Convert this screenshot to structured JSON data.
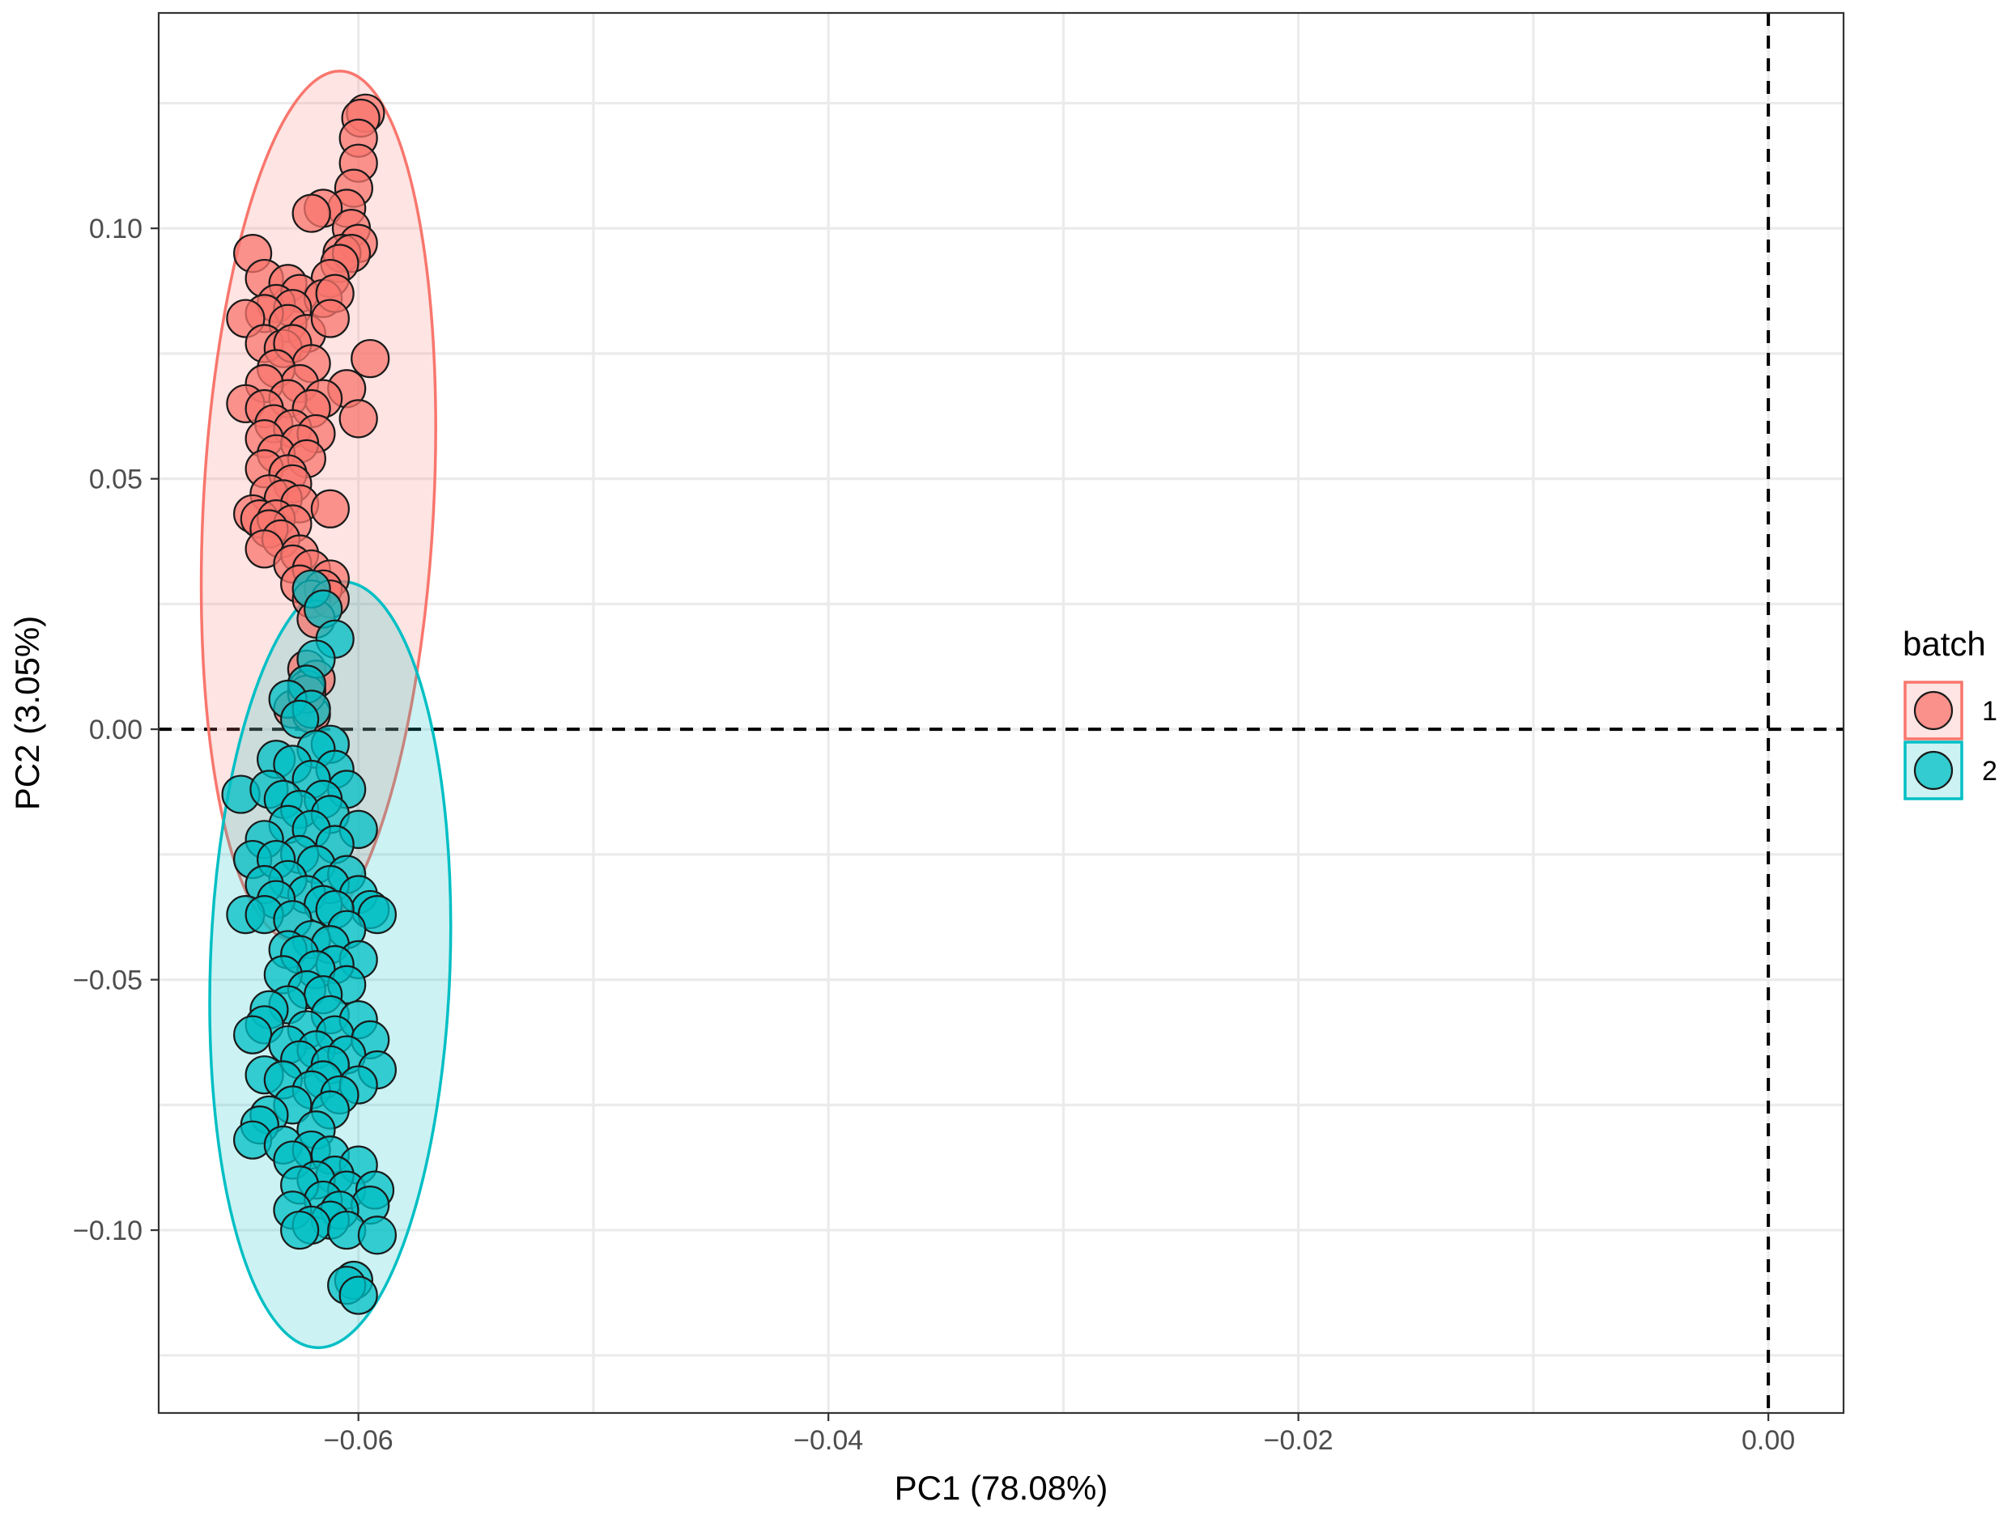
{
  "chart_data": {
    "type": "scatter",
    "title": "",
    "xlabel": "PC1 (78.08%)",
    "ylabel": "PC2 (3.05%)",
    "xlim": [
      -0.0685,
      0.0032
    ],
    "ylim": [
      -0.1365,
      0.143
    ],
    "x_ticks": [
      {
        "value": -0.06,
        "label": "−0.06"
      },
      {
        "value": -0.04,
        "label": "−0.04"
      },
      {
        "value": -0.02,
        "label": "−0.02"
      },
      {
        "value": 0.0,
        "label": "0.00"
      }
    ],
    "y_ticks": [
      {
        "value": 0.1,
        "label": "0.10"
      },
      {
        "value": 0.05,
        "label": "0.05"
      },
      {
        "value": 0.0,
        "label": "0.00"
      },
      {
        "value": -0.05,
        "label": "−0.05"
      },
      {
        "value": -0.1,
        "label": "−0.10"
      }
    ],
    "grid": true,
    "reference_lines": {
      "x": 0,
      "y": 0,
      "style": "dashed"
    },
    "legend": {
      "title": "batch",
      "placement": "right"
    },
    "series": [
      {
        "name": "1",
        "color": "#F8766D",
        "ellipse": {
          "cx": -0.0617,
          "cy": 0.0445,
          "rx": 0.0049,
          "ry": 0.087,
          "angle_deg": 3
        },
        "points": [
          [
            -0.0597,
            0.123
          ],
          [
            -0.0599,
            0.122
          ],
          [
            -0.06,
            0.118
          ],
          [
            -0.06,
            0.113
          ],
          [
            -0.0602,
            0.108
          ],
          [
            -0.0605,
            0.104
          ],
          [
            -0.0615,
            0.104
          ],
          [
            -0.062,
            0.103
          ],
          [
            -0.0603,
            0.1
          ],
          [
            -0.06,
            0.097
          ],
          [
            -0.0607,
            0.095
          ],
          [
            -0.0603,
            0.095
          ],
          [
            -0.0608,
            0.093
          ],
          [
            -0.0612,
            0.09
          ],
          [
            -0.0645,
            0.095
          ],
          [
            -0.064,
            0.09
          ],
          [
            -0.063,
            0.089
          ],
          [
            -0.0625,
            0.087
          ],
          [
            -0.0615,
            0.086
          ],
          [
            -0.061,
            0.087
          ],
          [
            -0.0635,
            0.085
          ],
          [
            -0.0628,
            0.084
          ],
          [
            -0.064,
            0.083
          ],
          [
            -0.0648,
            0.082
          ],
          [
            -0.063,
            0.081
          ],
          [
            -0.0622,
            0.079
          ],
          [
            -0.0612,
            0.082
          ],
          [
            -0.064,
            0.077
          ],
          [
            -0.0632,
            0.076
          ],
          [
            -0.0628,
            0.077
          ],
          [
            -0.0595,
            0.074
          ],
          [
            -0.062,
            0.073
          ],
          [
            -0.0635,
            0.072
          ],
          [
            -0.0625,
            0.069
          ],
          [
            -0.064,
            0.069
          ],
          [
            -0.0605,
            0.068
          ],
          [
            -0.0615,
            0.066
          ],
          [
            -0.063,
            0.066
          ],
          [
            -0.0648,
            0.065
          ],
          [
            -0.064,
            0.064
          ],
          [
            -0.062,
            0.064
          ],
          [
            -0.06,
            0.062
          ],
          [
            -0.0636,
            0.061
          ],
          [
            -0.0628,
            0.06
          ],
          [
            -0.0618,
            0.059
          ],
          [
            -0.064,
            0.058
          ],
          [
            -0.0625,
            0.057
          ],
          [
            -0.0635,
            0.055
          ],
          [
            -0.0622,
            0.054
          ],
          [
            -0.064,
            0.052
          ],
          [
            -0.063,
            0.051
          ],
          [
            -0.0628,
            0.049
          ],
          [
            -0.0638,
            0.047
          ],
          [
            -0.0632,
            0.046
          ],
          [
            -0.0625,
            0.045
          ],
          [
            -0.0612,
            0.044
          ],
          [
            -0.0645,
            0.043
          ],
          [
            -0.0642,
            0.042
          ],
          [
            -0.0635,
            0.042
          ],
          [
            -0.0628,
            0.041
          ],
          [
            -0.0638,
            0.04
          ],
          [
            -0.0633,
            0.038
          ],
          [
            -0.064,
            0.036
          ],
          [
            -0.0625,
            0.035
          ],
          [
            -0.0628,
            0.033
          ],
          [
            -0.062,
            0.032
          ],
          [
            -0.0612,
            0.03
          ],
          [
            -0.0625,
            0.029
          ],
          [
            -0.0615,
            0.028
          ],
          [
            -0.062,
            0.026
          ],
          [
            -0.0612,
            0.026
          ],
          [
            -0.0618,
            0.022
          ],
          [
            -0.0622,
            0.012
          ],
          [
            -0.0618,
            0.01
          ],
          [
            -0.0622,
            0.008
          ],
          [
            -0.0628,
            0.004
          ],
          [
            -0.062,
            0.003
          ],
          [
            -0.0622,
            0.007
          ]
        ]
      },
      {
        "name": "2",
        "color": "#00BFC4",
        "ellipse": {
          "cx": -0.0612,
          "cy": -0.047,
          "rx": 0.0051,
          "ry": 0.0765,
          "angle_deg": 2
        },
        "points": [
          [
            -0.062,
            0.028
          ],
          [
            -0.0615,
            0.024
          ],
          [
            -0.061,
            0.018
          ],
          [
            -0.0618,
            0.014
          ],
          [
            -0.0622,
            0.009
          ],
          [
            -0.063,
            0.006
          ],
          [
            -0.062,
            0.004
          ],
          [
            -0.0625,
            0.002
          ],
          [
            -0.0612,
            -0.003
          ],
          [
            -0.0618,
            -0.004
          ],
          [
            -0.0635,
            -0.006
          ],
          [
            -0.0628,
            -0.007
          ],
          [
            -0.061,
            -0.008
          ],
          [
            -0.062,
            -0.01
          ],
          [
            -0.0605,
            -0.012
          ],
          [
            -0.065,
            -0.013
          ],
          [
            -0.0638,
            -0.012
          ],
          [
            -0.0632,
            -0.014
          ],
          [
            -0.0615,
            -0.014
          ],
          [
            -0.0625,
            -0.016
          ],
          [
            -0.0612,
            -0.017
          ],
          [
            -0.063,
            -0.019
          ],
          [
            -0.062,
            -0.02
          ],
          [
            -0.06,
            -0.02
          ],
          [
            -0.064,
            -0.022
          ],
          [
            -0.061,
            -0.023
          ],
          [
            -0.0625,
            -0.025
          ],
          [
            -0.0645,
            -0.026
          ],
          [
            -0.0635,
            -0.026
          ],
          [
            -0.0618,
            -0.027
          ],
          [
            -0.0605,
            -0.029
          ],
          [
            -0.063,
            -0.03
          ],
          [
            -0.064,
            -0.031
          ],
          [
            -0.0612,
            -0.031
          ],
          [
            -0.0622,
            -0.033
          ],
          [
            -0.06,
            -0.033
          ],
          [
            -0.0635,
            -0.034
          ],
          [
            -0.0615,
            -0.035
          ],
          [
            -0.0595,
            -0.036
          ],
          [
            -0.061,
            -0.036
          ],
          [
            -0.0648,
            -0.037
          ],
          [
            -0.064,
            -0.037
          ],
          [
            -0.0628,
            -0.038
          ],
          [
            -0.0592,
            -0.037
          ],
          [
            -0.0605,
            -0.04
          ],
          [
            -0.062,
            -0.042
          ],
          [
            -0.0612,
            -0.043
          ],
          [
            -0.063,
            -0.044
          ],
          [
            -0.0625,
            -0.045
          ],
          [
            -0.06,
            -0.046
          ],
          [
            -0.061,
            -0.047
          ],
          [
            -0.0618,
            -0.048
          ],
          [
            -0.0632,
            -0.049
          ],
          [
            -0.0605,
            -0.051
          ],
          [
            -0.0622,
            -0.052
          ],
          [
            -0.0615,
            -0.053
          ],
          [
            -0.063,
            -0.055
          ],
          [
            -0.0638,
            -0.056
          ],
          [
            -0.0612,
            -0.057
          ],
          [
            -0.06,
            -0.058
          ],
          [
            -0.064,
            -0.059
          ],
          [
            -0.0645,
            -0.061
          ],
          [
            -0.0622,
            -0.06
          ],
          [
            -0.061,
            -0.061
          ],
          [
            -0.0595,
            -0.062
          ],
          [
            -0.063,
            -0.063
          ],
          [
            -0.0618,
            -0.064
          ],
          [
            -0.0605,
            -0.065
          ],
          [
            -0.0625,
            -0.066
          ],
          [
            -0.0612,
            -0.067
          ],
          [
            -0.0592,
            -0.068
          ],
          [
            -0.064,
            -0.069
          ],
          [
            -0.0632,
            -0.07
          ],
          [
            -0.0615,
            -0.07
          ],
          [
            -0.06,
            -0.071
          ],
          [
            -0.062,
            -0.072
          ],
          [
            -0.0608,
            -0.073
          ],
          [
            -0.0628,
            -0.075
          ],
          [
            -0.0612,
            -0.076
          ],
          [
            -0.0638,
            -0.077
          ],
          [
            -0.0642,
            -0.079
          ],
          [
            -0.0618,
            -0.08
          ],
          [
            -0.0645,
            -0.082
          ],
          [
            -0.0632,
            -0.083
          ],
          [
            -0.062,
            -0.084
          ],
          [
            -0.0612,
            -0.085
          ],
          [
            -0.0628,
            -0.086
          ],
          [
            -0.06,
            -0.087
          ],
          [
            -0.061,
            -0.089
          ],
          [
            -0.0618,
            -0.09
          ],
          [
            -0.0625,
            -0.091
          ],
          [
            -0.0605,
            -0.092
          ],
          [
            -0.0593,
            -0.092
          ],
          [
            -0.0615,
            -0.094
          ],
          [
            -0.0595,
            -0.095
          ],
          [
            -0.0628,
            -0.096
          ],
          [
            -0.0608,
            -0.096
          ],
          [
            -0.0612,
            -0.098
          ],
          [
            -0.062,
            -0.099
          ],
          [
            -0.0625,
            -0.1
          ],
          [
            -0.0605,
            -0.1
          ],
          [
            -0.0592,
            -0.101
          ],
          [
            -0.0602,
            -0.11
          ],
          [
            -0.0605,
            -0.111
          ],
          [
            -0.06,
            -0.113
          ]
        ]
      }
    ]
  }
}
